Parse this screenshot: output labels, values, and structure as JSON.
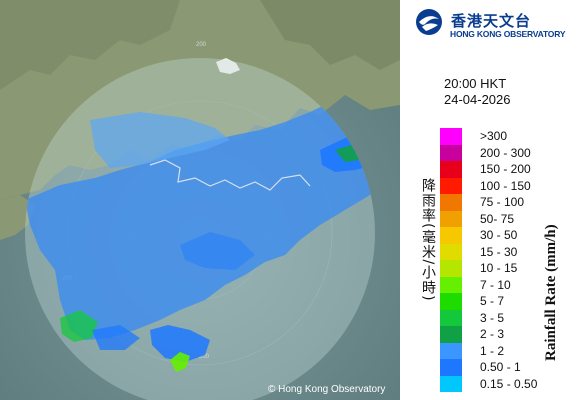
{
  "logo": {
    "name_cn": "香港天文台",
    "name_en": "HONG KONG OBSERVATORY",
    "color": "#0a3d8f"
  },
  "timestamp": {
    "time": "20:00 HKT",
    "date": "24-04-2026"
  },
  "legend": {
    "title_cn": "降雨率(毫米/小時)",
    "title_en": "Rainfall Rate (mm/h)",
    "items": [
      {
        "label": ">300",
        "color": "#ff00ff"
      },
      {
        "label": "200 - 300",
        "color": "#c8009e"
      },
      {
        "label": "150 - 200",
        "color": "#e8001a"
      },
      {
        "label": "100 - 150",
        "color": "#ff1a00"
      },
      {
        "label": "75 - 100",
        "color": "#f07800"
      },
      {
        "label": "50- 75",
        "color": "#f0a000"
      },
      {
        "label": "30 - 50",
        "color": "#f5c800"
      },
      {
        "label": "15 - 30",
        "color": "#e0dc00"
      },
      {
        "label": "10 - 15",
        "color": "#b4e600"
      },
      {
        "label": "7 - 10",
        "color": "#64f000"
      },
      {
        "label": "5 - 7",
        "color": "#1edc00"
      },
      {
        "label": "3 - 5",
        "color": "#14c83c"
      },
      {
        "label": "2 - 3",
        "color": "#10a046"
      },
      {
        "label": "1 - 2",
        "color": "#3c96ff"
      },
      {
        "label": "0.50 - 1",
        "color": "#1e78ff"
      },
      {
        "label": "0.15 - 0.50",
        "color": "#00c8ff"
      }
    ]
  },
  "map": {
    "range_ring_label": "200",
    "copyright": "© Hong Kong Observatory",
    "colors": {
      "sea": "#6e8c8c",
      "land": "#8c9a78",
      "coverage": "#b4d2d2"
    }
  }
}
